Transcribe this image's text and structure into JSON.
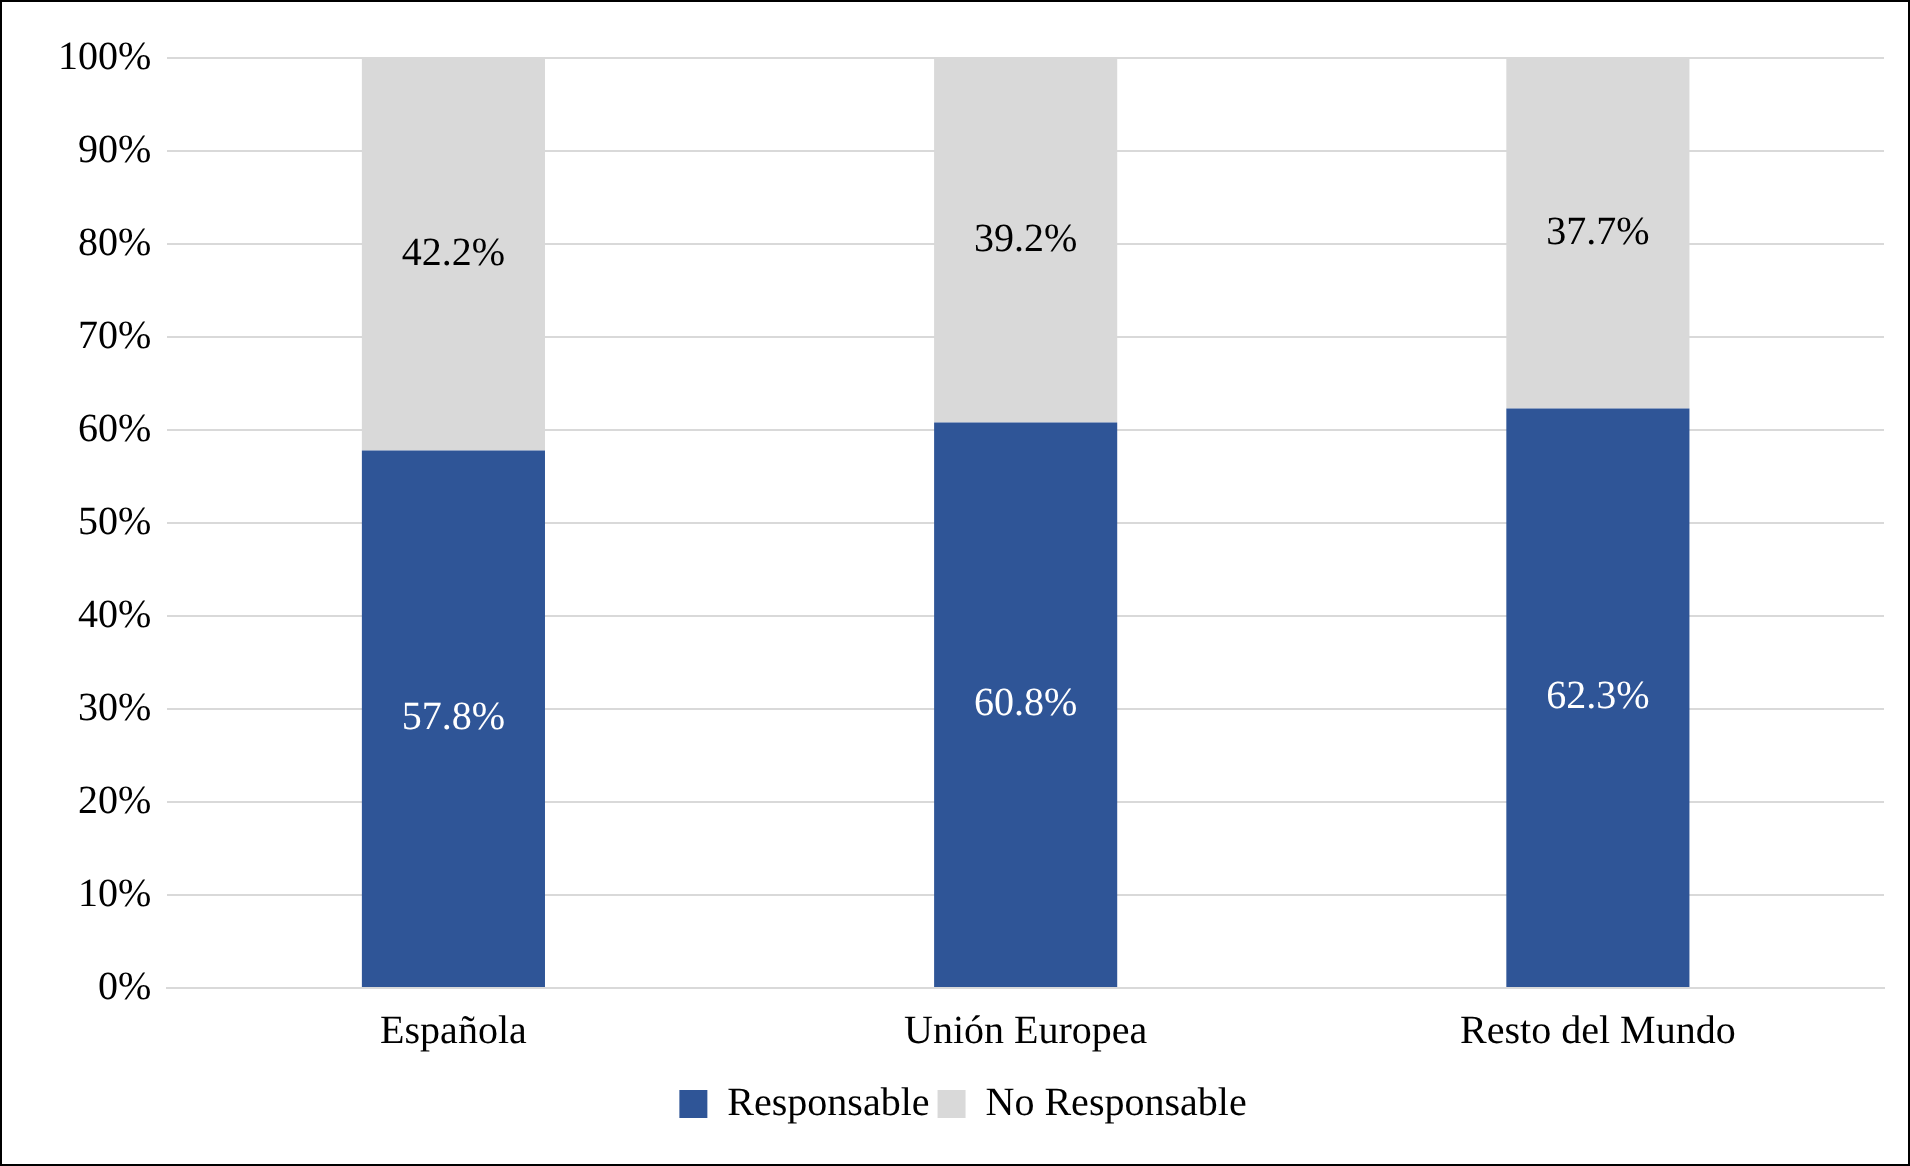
{
  "chart_data": {
    "type": "bar",
    "stacked": true,
    "categories": [
      "Española",
      "Unión Europea",
      "Resto del Mundo"
    ],
    "series": [
      {
        "name": "Responsable",
        "color": "#2f5597",
        "values": [
          57.8,
          60.8,
          62.3
        ],
        "value_labels": [
          "57.8%",
          "60.8%",
          "62.3%"
        ]
      },
      {
        "name": "No Responsable",
        "color": "#d9d9d9",
        "values": [
          42.2,
          39.2,
          37.7
        ],
        "value_labels": [
          "42.2%",
          "39.2%",
          "37.7%"
        ]
      }
    ],
    "ylim": [
      0,
      100
    ],
    "yticks": [
      {
        "value": 0,
        "label": "0%"
      },
      {
        "value": 10,
        "label": "10%"
      },
      {
        "value": 20,
        "label": "20%"
      },
      {
        "value": 30,
        "label": "30%"
      },
      {
        "value": 40,
        "label": "40%"
      },
      {
        "value": 50,
        "label": "50%"
      },
      {
        "value": 60,
        "label": "60%"
      },
      {
        "value": 70,
        "label": "70%"
      },
      {
        "value": 80,
        "label": "80%"
      },
      {
        "value": 90,
        "label": "90%"
      },
      {
        "value": 100,
        "label": "100%"
      }
    ],
    "grid": "y",
    "legend": "bottom"
  }
}
